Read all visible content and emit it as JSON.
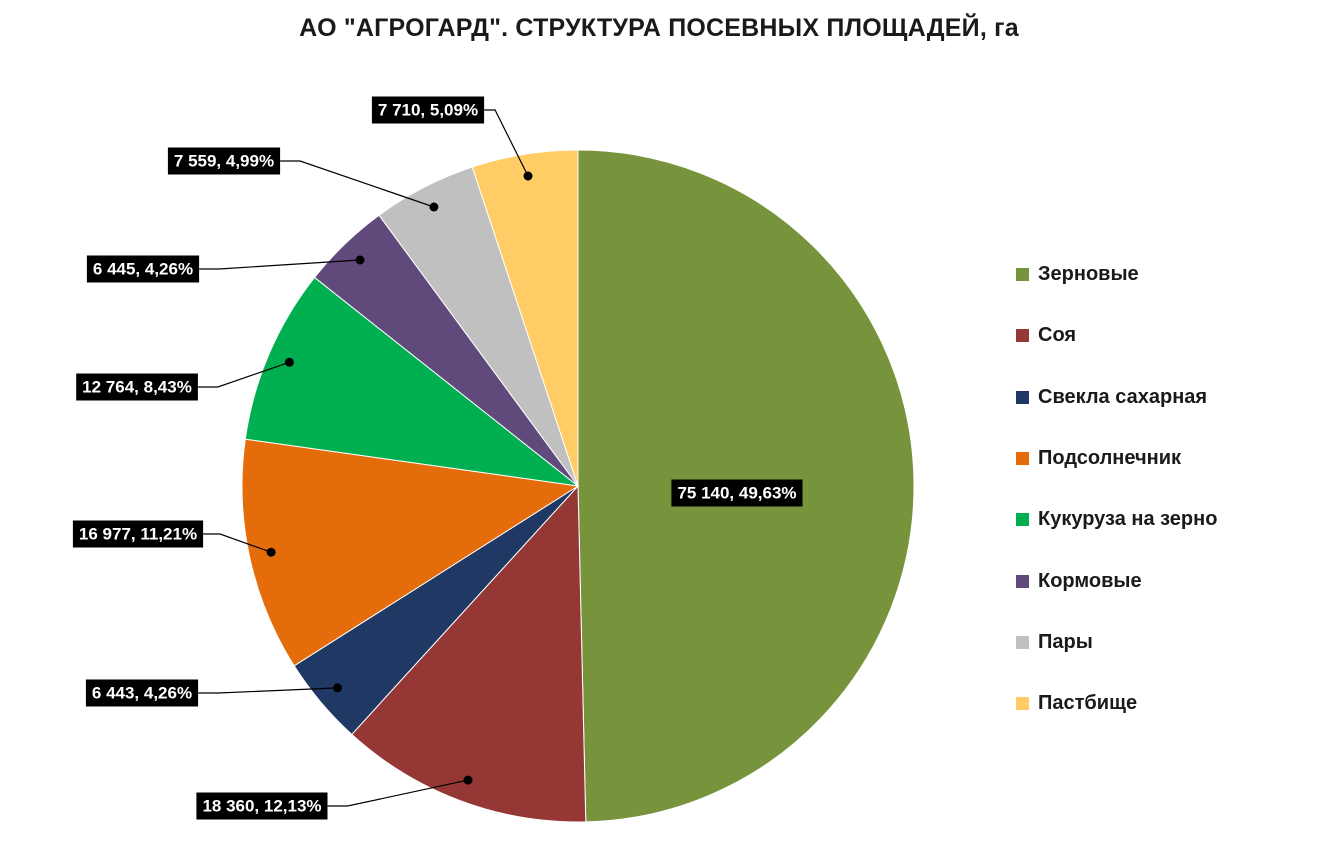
{
  "chart_data": {
    "type": "pie",
    "title": "АО \"АГРОГАРД\". СТРУКТУРА ПОСЕВНЫХ ПЛОЩАДЕЙ, га",
    "legend_position": "right",
    "slices": [
      {
        "name": "Зерновые",
        "value": 75140,
        "label": "75 140,  49,63%",
        "color": "#77933C"
      },
      {
        "name": "Соя",
        "value": 18360,
        "label": "18 360,  12,13%",
        "color": "#953735"
      },
      {
        "name": "Свекла сахарная",
        "value": 6443,
        "label": "6 443,  4,26%",
        "color": "#1F3864"
      },
      {
        "name": "Подсолнечник",
        "value": 16977,
        "label": "16 977,  11,21%",
        "color": "#E46C0A"
      },
      {
        "name": "Кукуруза на зерно",
        "value": 12764,
        "label": "12 764,  8,43%",
        "color": "#00B050"
      },
      {
        "name": "Кормовые",
        "value": 6445,
        "label": "6 445,  4,26%",
        "color": "#604A7B"
      },
      {
        "name": "Пары",
        "value": 7559,
        "label": "7 559,  4,99%",
        "color": "#C0C0C0"
      },
      {
        "name": "Пастбище",
        "value": 7710,
        "label": "7 710,  5,09%",
        "color": "#FFCC66"
      }
    ]
  }
}
